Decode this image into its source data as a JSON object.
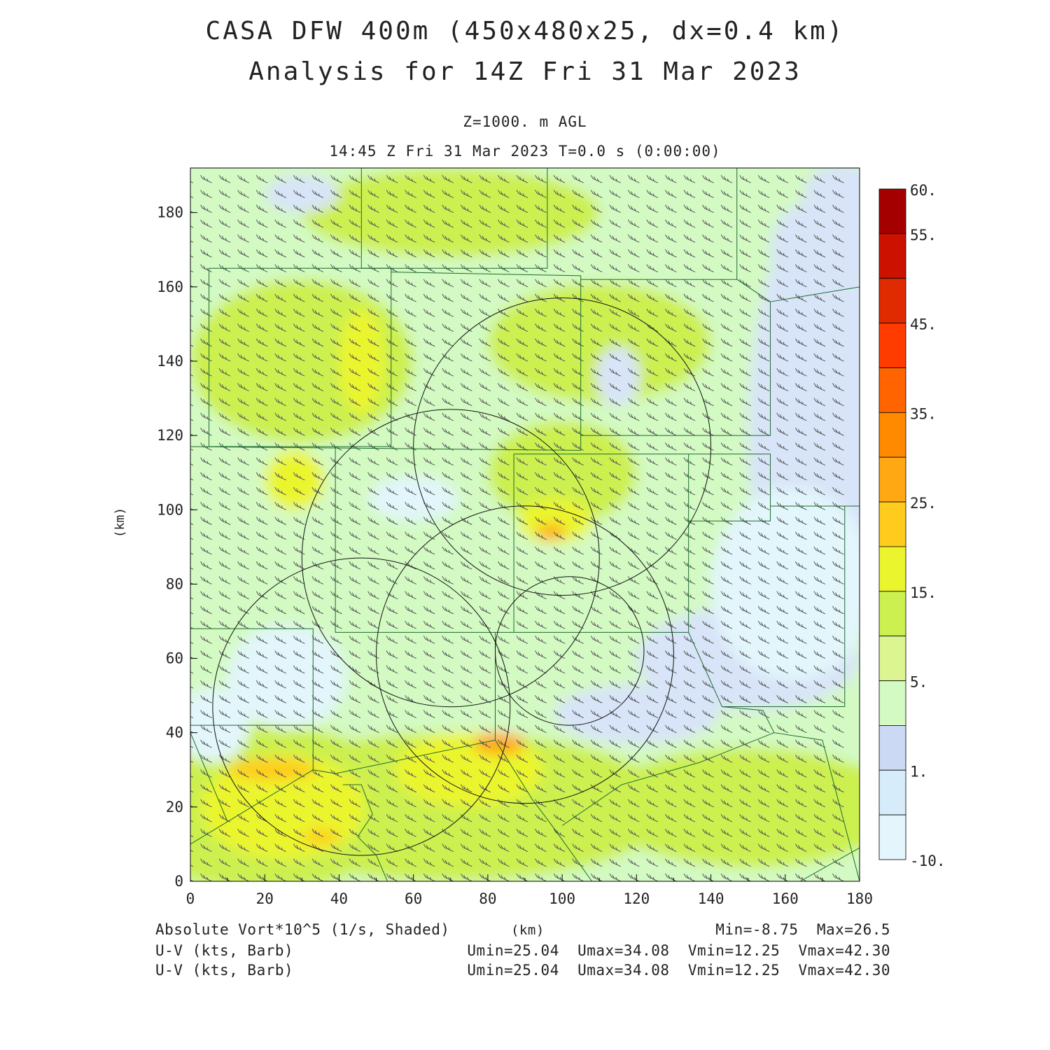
{
  "header": {
    "title_line1": "CASA DFW 400m (450x480x25, dx=0.4 km)",
    "title_line2": "Analysis for 14Z Fri 31 Mar 2023",
    "level": "Z=1000. m AGL",
    "valid_time": "14:45 Z Fri 31 Mar 2023    T=0.0 s (0:00:00)"
  },
  "axes": {
    "x_ticks": [
      "0",
      "20",
      "40",
      "60",
      "80",
      "100",
      "120",
      "140",
      "160",
      "180"
    ],
    "y_ticks": [
      "0",
      "20",
      "40",
      "60",
      "80",
      "100",
      "120",
      "140",
      "160",
      "180"
    ],
    "x_unit": "(km)",
    "y_unit": "(km)",
    "x_range": [
      0,
      180
    ],
    "y_range": [
      0,
      192
    ]
  },
  "colorbar": {
    "labels": [
      "60.",
      "55.",
      "45.",
      "35.",
      "25.",
      "15.",
      "5.",
      "1.",
      "-10."
    ],
    "colors": [
      "#a50000",
      "#cc1100",
      "#e02a00",
      "#ff3c00",
      "#ff6400",
      "#ff8a00",
      "#ffa814",
      "#ffcc1e",
      "#ebf52d",
      "#ccf050",
      "#ddf591",
      "#d3fac3",
      "#ccd9f5",
      "#d7ecfa",
      "#e4f6fc"
    ]
  },
  "footer": {
    "field_label": "Absolute Vort*10^5 (1/s, Shaded)",
    "x_unit_label": "(km)",
    "minmax": "Min=-8.75  Max=26.5",
    "barb_label_1": "U-V (kts, Barb)",
    "barb_stats_1": "Umin=25.04  Umax=34.08  Vmin=12.25  Vmax=42.30",
    "barb_label_2": "U-V (kts, Barb)",
    "barb_stats_2": "Umin=25.04  Umax=34.08  Vmin=12.25  Vmax=42.30"
  },
  "map": {
    "field_name": "Absolute Vort*10^5",
    "blob_colors": {
      "blue_low": "#d8e4f8",
      "pale": "#e2f6fb",
      "light_green": "#d3fac3",
      "green": "#ccf050",
      "yellow": "#ebf52d",
      "gold": "#ffcc1e",
      "orange": "#ffa814",
      "dark_orange": "#ff8a00"
    },
    "radar_rings_km": [
      {
        "center": [
          100,
          117
        ],
        "radius": 40
      },
      {
        "center": [
          70,
          87
        ],
        "radius": 40
      },
      {
        "center": [
          90,
          61
        ],
        "radius": 40
      },
      {
        "center": [
          46,
          47
        ],
        "radius": 40
      },
      {
        "center": [
          102,
          62
        ],
        "radius": 20
      }
    ]
  }
}
